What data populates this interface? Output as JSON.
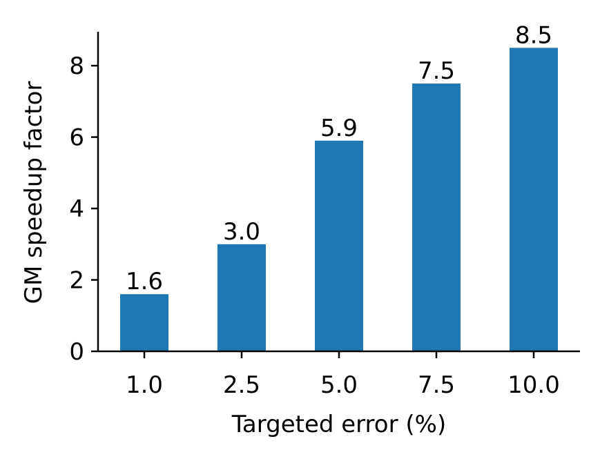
{
  "chart_data": {
    "type": "bar",
    "categories": [
      "1.0",
      "2.5",
      "5.0",
      "7.5",
      "10.0"
    ],
    "values": [
      1.6,
      3.0,
      5.9,
      7.5,
      8.5
    ],
    "data_labels": [
      "1.6",
      "3.0",
      "5.9",
      "7.5",
      "8.5"
    ],
    "title": "",
    "xlabel": "Targeted error (%)",
    "ylabel": "GM speedup factor",
    "ylim": [
      0,
      8.95
    ],
    "yticks": [
      0,
      2,
      4,
      6,
      8
    ],
    "grid": false,
    "legend": "none",
    "bar_color": "#1f77b4"
  }
}
